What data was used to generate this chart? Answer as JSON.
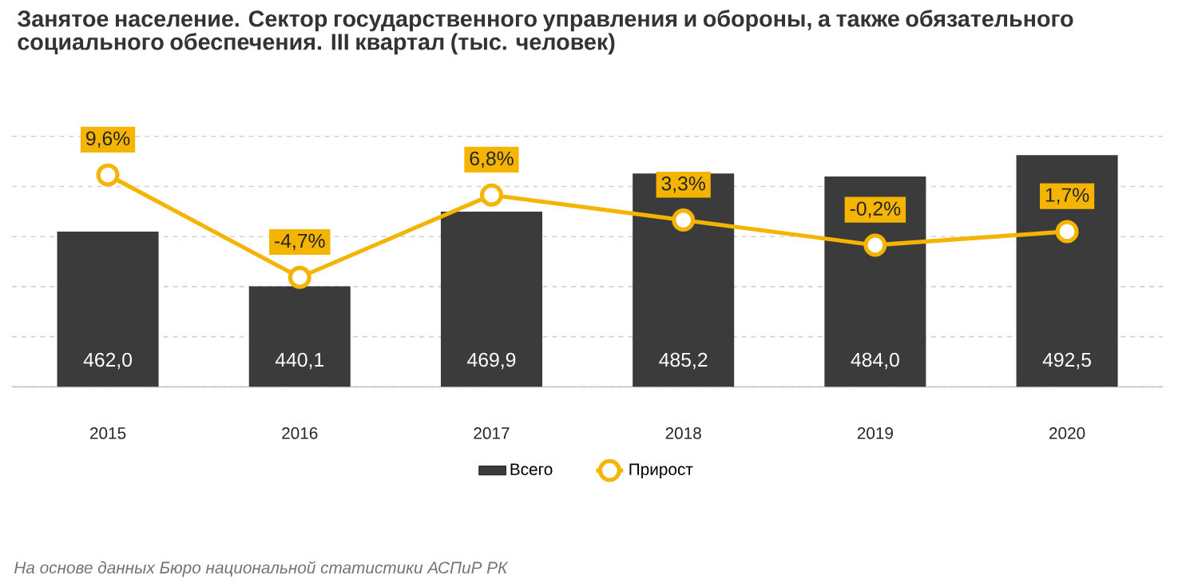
{
  "chart_data": {
    "type": "bar",
    "title": "Занятое население. Сектор государственного управления и обороны, а также обязательного социального обеспечения. III квартал (тыс. человек)",
    "categories": [
      "2015",
      "2016",
      "2017",
      "2018",
      "2019",
      "2020"
    ],
    "series": [
      {
        "name": "Всего",
        "color": "#3b3b3b",
        "values": [
          462.0,
          440.1,
          469.9,
          485.2,
          484.0,
          492.5
        ],
        "value_labels": [
          "462,0",
          "440,1",
          "469,9",
          "485,2",
          "484,0",
          "492,5"
        ]
      },
      {
        "name": "Прирост",
        "type": "line",
        "axis": "y2",
        "color": "#f4b400",
        "values": [
          9.6,
          -4.7,
          6.8,
          3.3,
          -0.2,
          1.7
        ],
        "value_labels": [
          "9,6%",
          "-4,7%",
          "6,8%",
          "3,3%",
          "-0,2%",
          "1,7%"
        ]
      }
    ],
    "ylim": [
      400,
      500
    ],
    "yticks": [
      {
        "value": 400,
        "label": null
      },
      {
        "value": 420,
        "label": null
      },
      {
        "value": 440,
        "label": null
      },
      {
        "value": 460,
        "label": null
      },
      {
        "value": 480,
        "label": null
      },
      {
        "value": 500,
        "label": null
      }
    ],
    "y2lim": [
      -20,
      15
    ],
    "grid": "y",
    "legend": "bottom",
    "marker": "circle",
    "annotations": [
      "На основе данных Бюро национальной статистики АСПиР РК"
    ]
  }
}
